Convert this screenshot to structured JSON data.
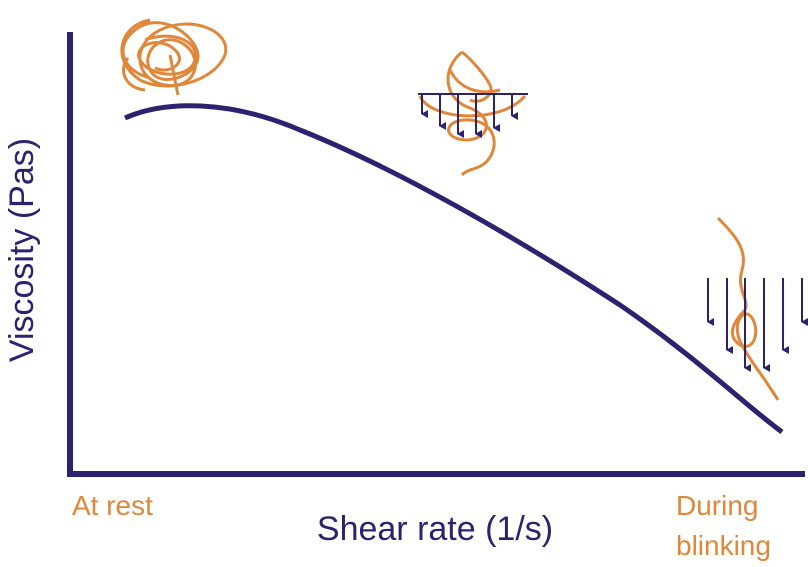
{
  "axes": {
    "y_label": "Viscosity (Pas)",
    "x_label": "Shear rate (1/s)"
  },
  "x_end_labels": {
    "left": "At rest",
    "right_lines": [
      "During",
      "blinking"
    ]
  }
}
